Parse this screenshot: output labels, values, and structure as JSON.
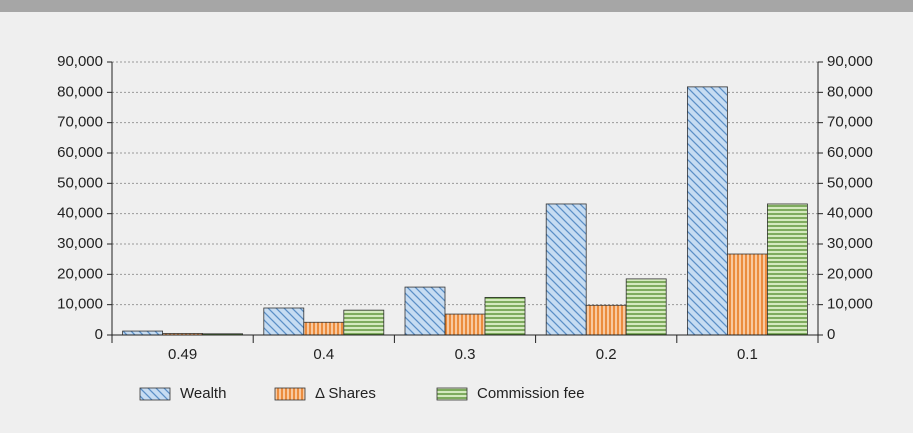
{
  "chart_data": {
    "type": "bar",
    "categories": [
      "0.49",
      "0.4",
      "0.3",
      "0.2",
      "0.1"
    ],
    "series": [
      {
        "name": "Wealth",
        "color": "#c6dcf2",
        "pattern": "diagonal",
        "pattern_color": "#5b8fc7",
        "values": [
          1300,
          8900,
          15800,
          43200,
          81800
        ]
      },
      {
        "name": "Δ Shares",
        "color": "#f8c9a0",
        "pattern": "vertical",
        "pattern_color": "#e46c0a",
        "values": [
          500,
          4200,
          6900,
          9800,
          26700
        ]
      },
      {
        "name": "Commission fee",
        "color": "#d4e9bf",
        "pattern": "horizontal",
        "pattern_color": "#4f8a2a",
        "values": [
          400,
          8200,
          12400,
          18500,
          43200
        ]
      }
    ],
    "ylim": [
      0,
      90000
    ],
    "yticks": [
      0,
      {
        "value": 10000,
        "label": "10,000"
      },
      {
        "value": 20000,
        "label": "20,000"
      },
      {
        "value": 30000,
        "label": "30,000"
      },
      {
        "value": 40000,
        "label": "40,000"
      },
      {
        "value": 50000,
        "label": "50,000"
      },
      {
        "value": 60000,
        "label": "60,000"
      },
      {
        "value": 70000,
        "label": "70,000"
      },
      {
        "value": 80000,
        "label": "80,000"
      },
      {
        "value": 90000,
        "label": "90,000"
      }
    ],
    "y2lim": [
      0,
      90000
    ],
    "y2ticks": [
      0,
      {
        "value": 10000,
        "label": "10,000"
      },
      {
        "value": 20000,
        "label": "20,000"
      },
      {
        "value": 30000,
        "label": "30,000"
      },
      {
        "value": 40000,
        "label": "40,000"
      },
      {
        "value": 50000,
        "label": "50,000"
      },
      {
        "value": 60000,
        "label": "60,000"
      },
      {
        "value": 70000,
        "label": "70,000"
      },
      {
        "value": 80000,
        "label": "80,000"
      },
      {
        "value": 90000,
        "label": "90,000"
      }
    ],
    "grid": true,
    "legend": "bottom"
  }
}
